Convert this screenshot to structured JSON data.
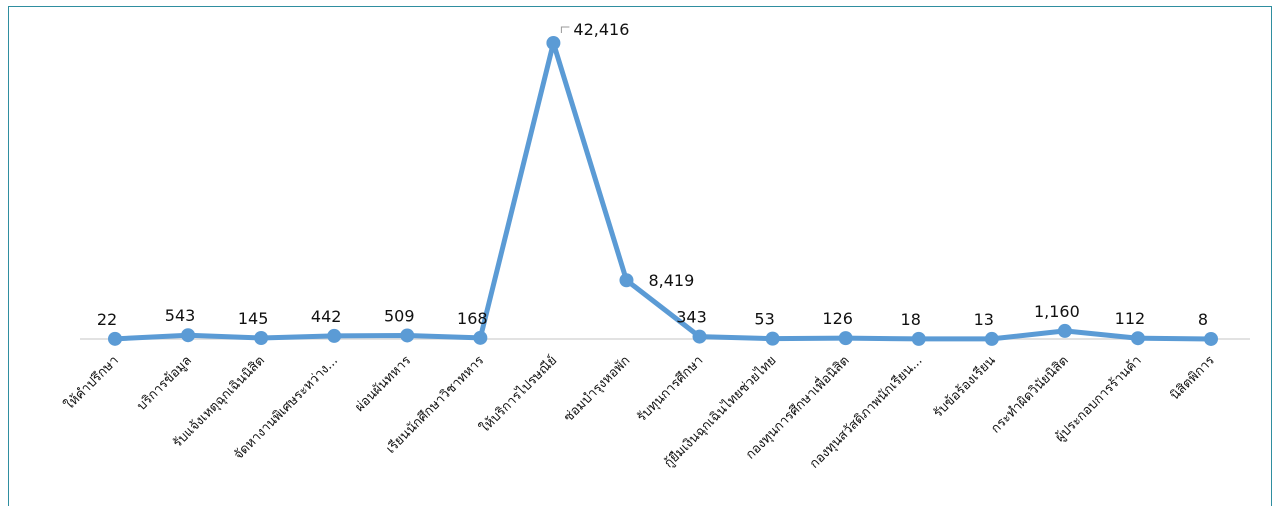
{
  "chart_data": {
    "type": "line",
    "categories": [
      "ให้คำปรึกษา",
      "บริการข้อมูล",
      "รับแจ้งเหตุฉุกเฉินนิสิต",
      "จัดหางานพิเศษระหว่าง...",
      "ผ่อนผันทหาร",
      "เรียนนักศึกษาวิชาทหาร",
      "ให้บริการไปรษณีย์",
      "ซ่อมบำรุงหอพัก",
      "รับทุนการศึกษา",
      "กู้ยืมเงินฉุกเฉินไทยช่วยไทย",
      "กองทุนการศึกษาเพื่อนิสิต",
      "กองทุนสวัสดิภาพนักเรียน...",
      "รับข้อร้องเรียน",
      "กระทำผิดวินัยนิสิต",
      "ผู้ประกอบการร้านค้า",
      "นิสิตพิการ"
    ],
    "values": [
      22,
      543,
      145,
      442,
      509,
      168,
      42416,
      8419,
      343,
      53,
      126,
      18,
      13,
      1160,
      112,
      8
    ],
    "data_labels": [
      "22",
      "543",
      "145",
      "442",
      "509",
      "168",
      "42,416",
      "8,419",
      "343",
      "53",
      "126",
      "18",
      "13",
      "1,160",
      "112",
      "8"
    ],
    "ylim": [
      0,
      45000
    ],
    "grid": false,
    "legend": "none",
    "line_color": "#5b9bd5",
    "axis_color": "#d9d9d9"
  }
}
